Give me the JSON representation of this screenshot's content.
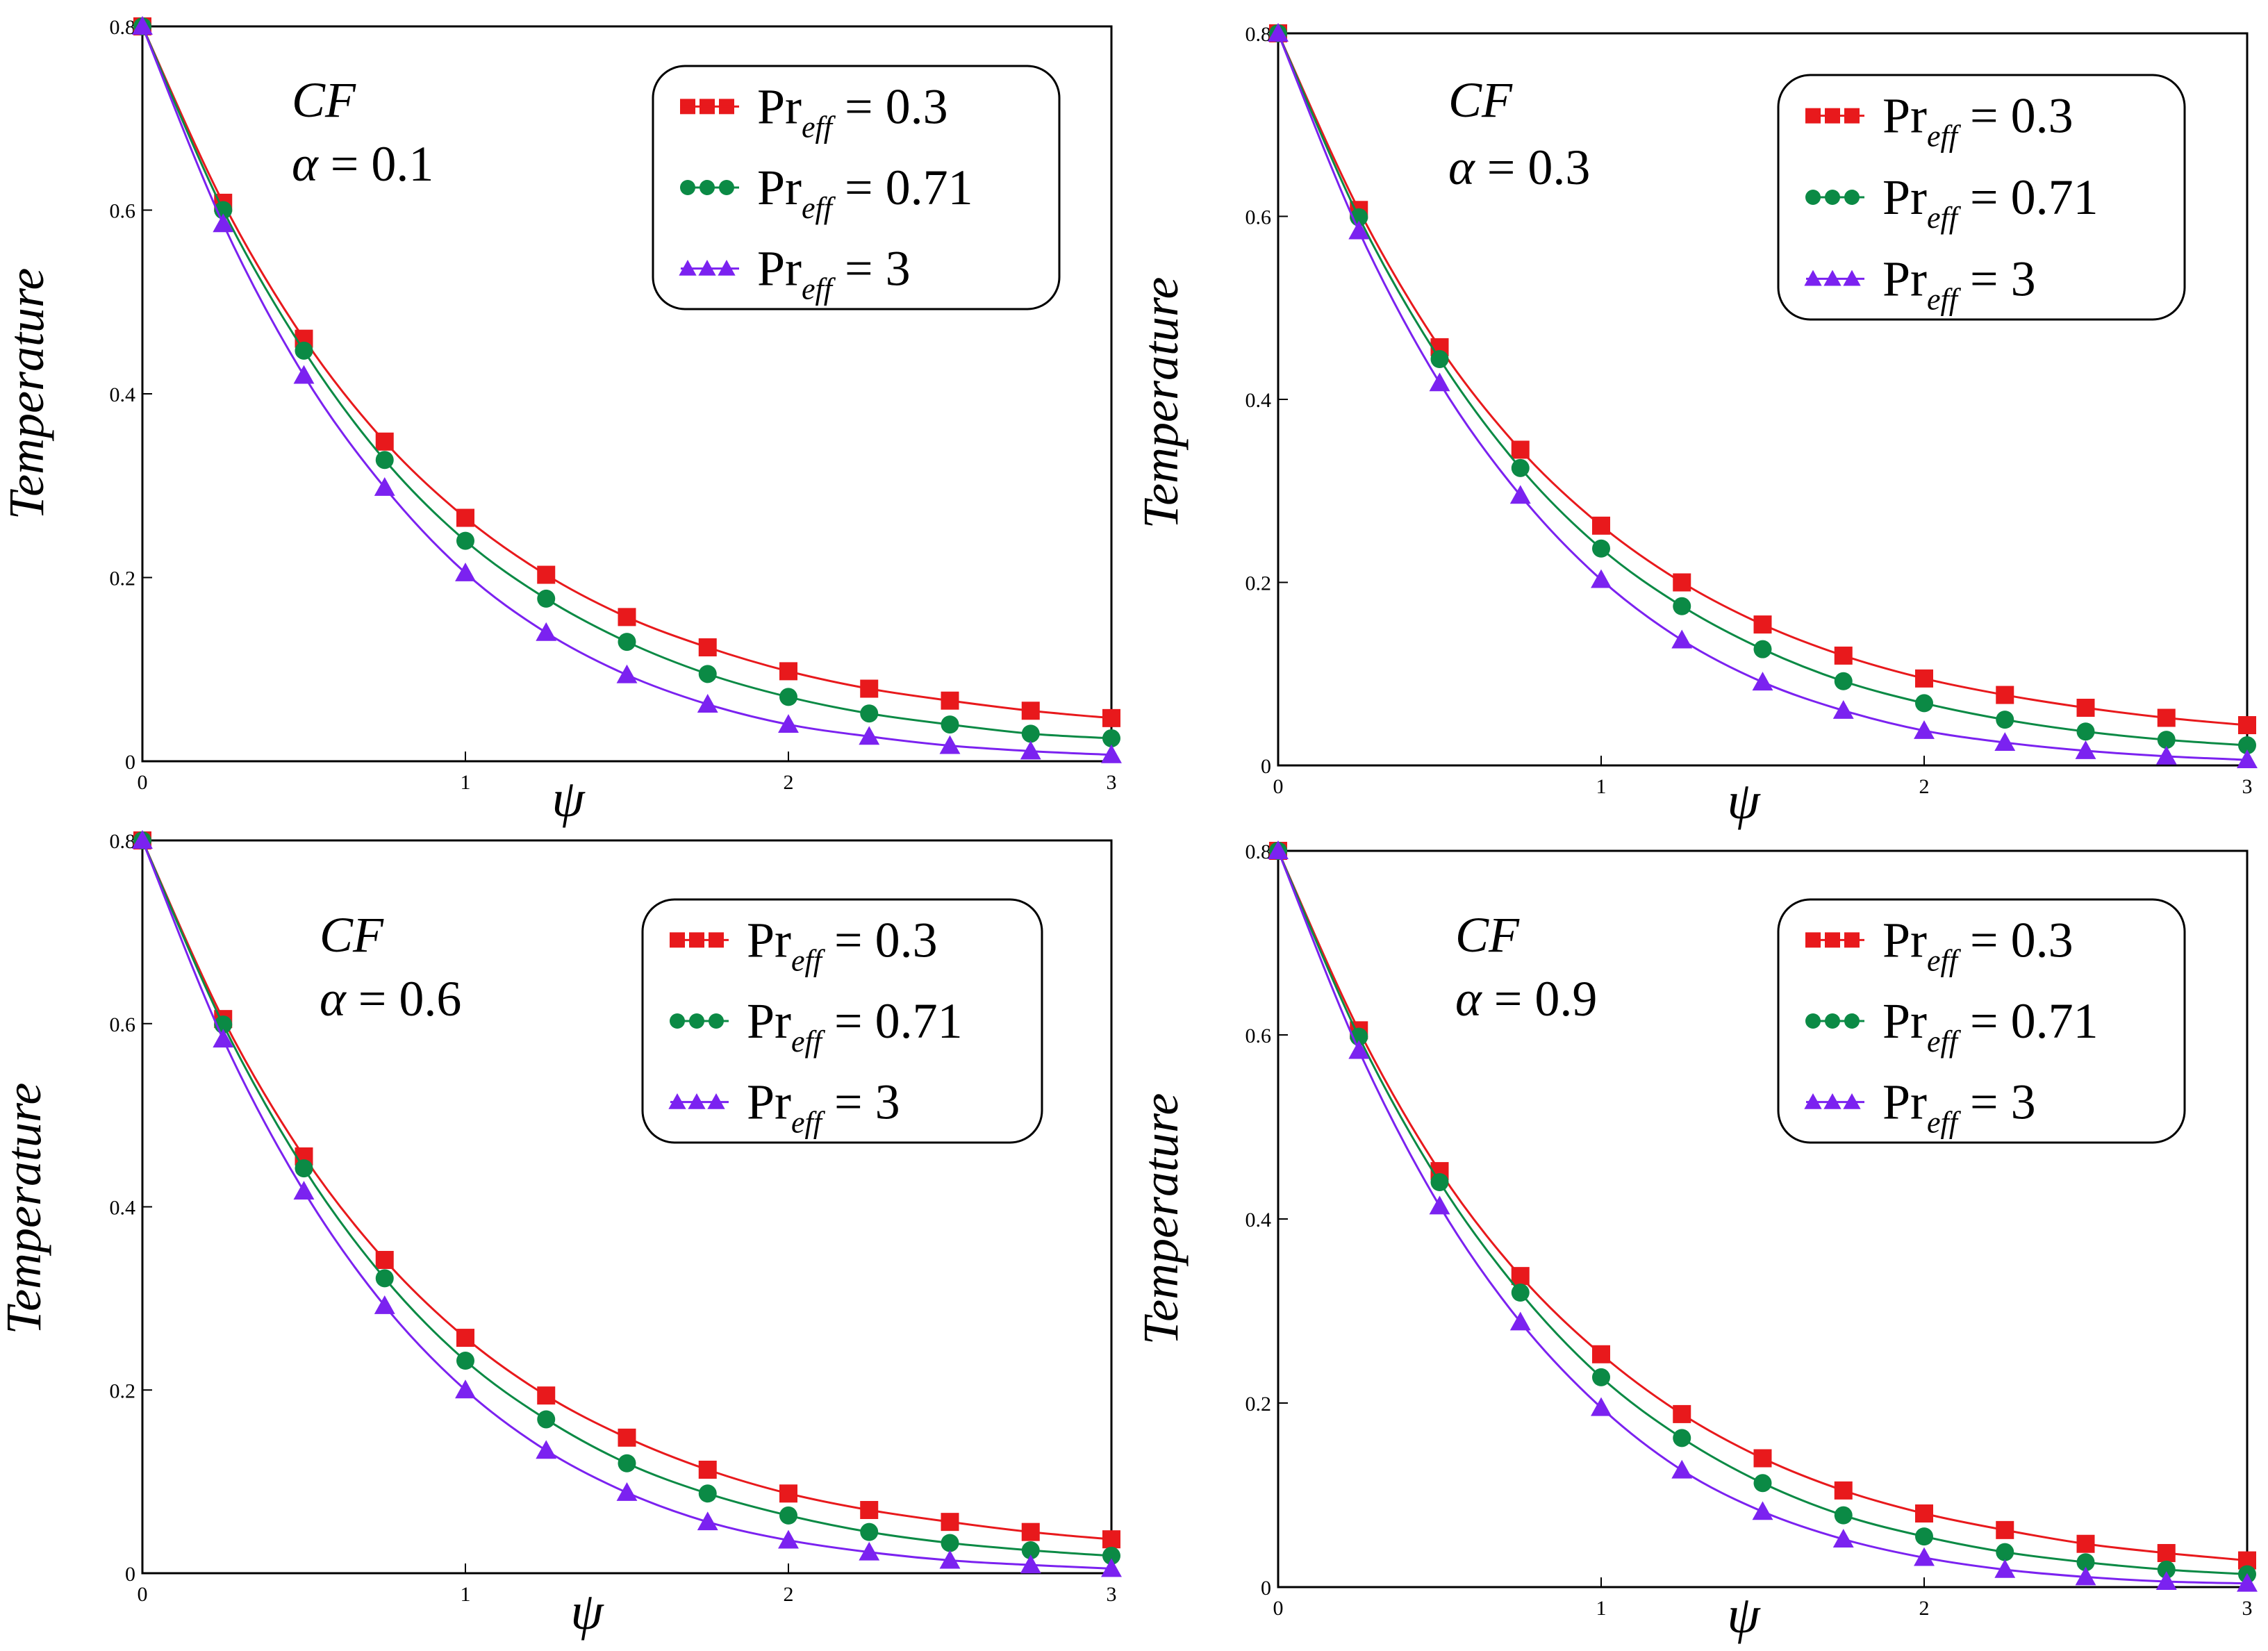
{
  "panel_text": {
    "regime": "CF",
    "alpha_symbol": "α",
    "equals": "=",
    "legend_base": "Pr",
    "legend_sub": "eff"
  },
  "chart_data": [
    {
      "type": "line",
      "title": "",
      "xlabel": "ψ",
      "ylabel": "Temperature",
      "alpha_value": "0.1",
      "xlim": [
        0,
        3
      ],
      "ylim": [
        0,
        0.8
      ],
      "xticks": [
        "0",
        "1",
        "2",
        "3"
      ],
      "yticks": [
        "0",
        "0.2",
        "0.4",
        "0.6",
        "0.8"
      ],
      "grid": false,
      "legend_position": "top-right",
      "x": [
        0,
        0.25,
        0.5,
        0.75,
        1.0,
        1.25,
        1.5,
        1.75,
        2.0,
        2.25,
        2.5,
        2.75,
        3.0
      ],
      "series": [
        {
          "value": "0.3",
          "marker": "square",
          "color": "#e8191c",
          "values": [
            0.8,
            0.608,
            0.46,
            0.348,
            0.265,
            0.203,
            0.157,
            0.124,
            0.098,
            0.079,
            0.066,
            0.055,
            0.047
          ]
        },
        {
          "value": "0.71",
          "marker": "circle",
          "color": "#0b8a45",
          "values": [
            0.8,
            0.6,
            0.447,
            0.328,
            0.24,
            0.177,
            0.13,
            0.095,
            0.07,
            0.052,
            0.04,
            0.03,
            0.025
          ]
        },
        {
          "value": "3",
          "marker": "triangle",
          "color": "#7b22f0",
          "values": [
            0.8,
            0.585,
            0.42,
            0.298,
            0.205,
            0.14,
            0.094,
            0.062,
            0.04,
            0.027,
            0.017,
            0.011,
            0.007
          ]
        }
      ]
    },
    {
      "type": "line",
      "title": "",
      "xlabel": "ψ",
      "ylabel": "Temperature",
      "alpha_value": "0.3",
      "xlim": [
        0,
        3
      ],
      "ylim": [
        0,
        0.8
      ],
      "xticks": [
        "0",
        "1",
        "2",
        "3"
      ],
      "yticks": [
        "0",
        "0.2",
        "0.4",
        "0.6",
        "0.8"
      ],
      "grid": false,
      "legend_position": "top-right",
      "x": [
        0,
        0.25,
        0.5,
        0.75,
        1.0,
        1.25,
        1.5,
        1.75,
        2.0,
        2.25,
        2.5,
        2.75,
        3.0
      ],
      "series": [
        {
          "value": "0.3",
          "marker": "square",
          "color": "#e8191c",
          "values": [
            0.8,
            0.607,
            0.457,
            0.345,
            0.262,
            0.2,
            0.154,
            0.12,
            0.095,
            0.077,
            0.063,
            0.052,
            0.044
          ]
        },
        {
          "value": "0.71",
          "marker": "circle",
          "color": "#0b8a45",
          "values": [
            0.8,
            0.599,
            0.444,
            0.325,
            0.237,
            0.174,
            0.127,
            0.092,
            0.068,
            0.05,
            0.037,
            0.028,
            0.022
          ]
        },
        {
          "value": "3",
          "marker": "triangle",
          "color": "#7b22f0",
          "values": [
            0.8,
            0.584,
            0.418,
            0.295,
            0.203,
            0.137,
            0.091,
            0.06,
            0.038,
            0.025,
            0.016,
            0.01,
            0.006
          ]
        }
      ]
    },
    {
      "type": "line",
      "title": "",
      "xlabel": "ψ",
      "ylabel": "Temperature",
      "alpha_value": "0.6",
      "xlim": [
        0,
        3
      ],
      "ylim": [
        0,
        0.8
      ],
      "xticks": [
        "0",
        "1",
        "2",
        "3"
      ],
      "yticks": [
        "0",
        "0.2",
        "0.4",
        "0.6",
        "0.8"
      ],
      "grid": false,
      "legend_position": "top-right",
      "x": [
        0,
        0.25,
        0.5,
        0.75,
        1.0,
        1.25,
        1.5,
        1.75,
        2.0,
        2.25,
        2.5,
        2.75,
        3.0
      ],
      "series": [
        {
          "value": "0.3",
          "marker": "square",
          "color": "#e8191c",
          "values": [
            0.8,
            0.605,
            0.455,
            0.342,
            0.257,
            0.194,
            0.148,
            0.113,
            0.087,
            0.069,
            0.056,
            0.045,
            0.037
          ]
        },
        {
          "value": "0.71",
          "marker": "circle",
          "color": "#0b8a45",
          "values": [
            0.8,
            0.599,
            0.442,
            0.322,
            0.232,
            0.168,
            0.12,
            0.087,
            0.063,
            0.045,
            0.033,
            0.025,
            0.019
          ]
        },
        {
          "value": "3",
          "marker": "triangle",
          "color": "#7b22f0",
          "values": [
            0.8,
            0.583,
            0.417,
            0.292,
            0.2,
            0.134,
            0.088,
            0.056,
            0.036,
            0.023,
            0.014,
            0.009,
            0.005
          ]
        }
      ]
    },
    {
      "type": "line",
      "title": "",
      "xlabel": "ψ",
      "ylabel": "Temperature",
      "alpha_value": "0.9",
      "xlim": [
        0,
        3
      ],
      "ylim": [
        0,
        0.8
      ],
      "xticks": [
        "0",
        "1",
        "2",
        "3"
      ],
      "yticks": [
        "0",
        "0.2",
        "0.4",
        "0.6",
        "0.8"
      ],
      "grid": false,
      "legend_position": "top-right",
      "x": [
        0,
        0.25,
        0.5,
        0.75,
        1.0,
        1.25,
        1.5,
        1.75,
        2.0,
        2.25,
        2.5,
        2.75,
        3.0
      ],
      "series": [
        {
          "value": "0.3",
          "marker": "square",
          "color": "#e8191c",
          "values": [
            0.8,
            0.605,
            0.452,
            0.338,
            0.253,
            0.188,
            0.14,
            0.105,
            0.08,
            0.062,
            0.047,
            0.037,
            0.029
          ]
        },
        {
          "value": "0.71",
          "marker": "circle",
          "color": "#0b8a45",
          "values": [
            0.8,
            0.598,
            0.44,
            0.32,
            0.228,
            0.162,
            0.113,
            0.078,
            0.055,
            0.038,
            0.027,
            0.019,
            0.014
          ]
        },
        {
          "value": "3",
          "marker": "triangle",
          "color": "#7b22f0",
          "values": [
            0.8,
            0.583,
            0.414,
            0.288,
            0.195,
            0.127,
            0.082,
            0.052,
            0.032,
            0.019,
            0.011,
            0.006,
            0.004
          ]
        }
      ]
    }
  ]
}
